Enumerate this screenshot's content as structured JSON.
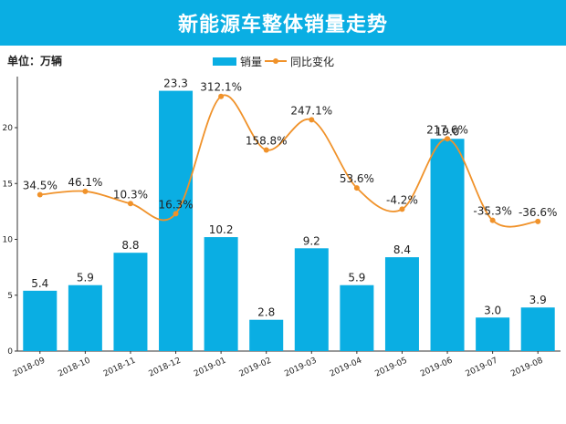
{
  "chart_data": {
    "type": "bar",
    "title": "新能源车整体销量走势",
    "unit_label": "单位：万辆",
    "categories": [
      "2018-09",
      "2018-10",
      "2018-11",
      "2018-12",
      "2019-01",
      "2019-02",
      "2019-03",
      "2019-04",
      "2019-05",
      "2019-06",
      "2019-07",
      "2019-08"
    ],
    "series": [
      {
        "name": "销量",
        "type": "bar",
        "values": [
          5.4,
          5.9,
          8.8,
          23.3,
          10.2,
          2.8,
          9.2,
          5.9,
          8.4,
          19.0,
          3.0,
          3.9
        ],
        "labels": [
          "5.4",
          "5.9",
          "8.8",
          "23.3",
          "10.2",
          "2.8",
          "9.2",
          "5.9",
          "8.4",
          "19.0",
          "3.0",
          "3.9"
        ],
        "color": "#0aaee3"
      },
      {
        "name": "同比变化",
        "type": "line",
        "labels": [
          "34.5%",
          "46.1%",
          "10.3%",
          "16.3%",
          "312.1%",
          "158.8%",
          "247.1%",
          "53.6%",
          "-4.2%",
          "217.6%",
          "-35.3%",
          "-36.6%"
        ],
        "marker_values": [
          14.0,
          14.3,
          13.2,
          12.3,
          22.8,
          18.0,
          20.7,
          14.6,
          12.7,
          19.0,
          11.7,
          11.6
        ],
        "color": "#f0922a"
      }
    ],
    "yticks": [
      0,
      5,
      10,
      15,
      20
    ],
    "ylim": [
      0,
      24.5
    ],
    "xlabel": "",
    "ylabel": "",
    "legend_position": "top-center",
    "grid": false
  }
}
